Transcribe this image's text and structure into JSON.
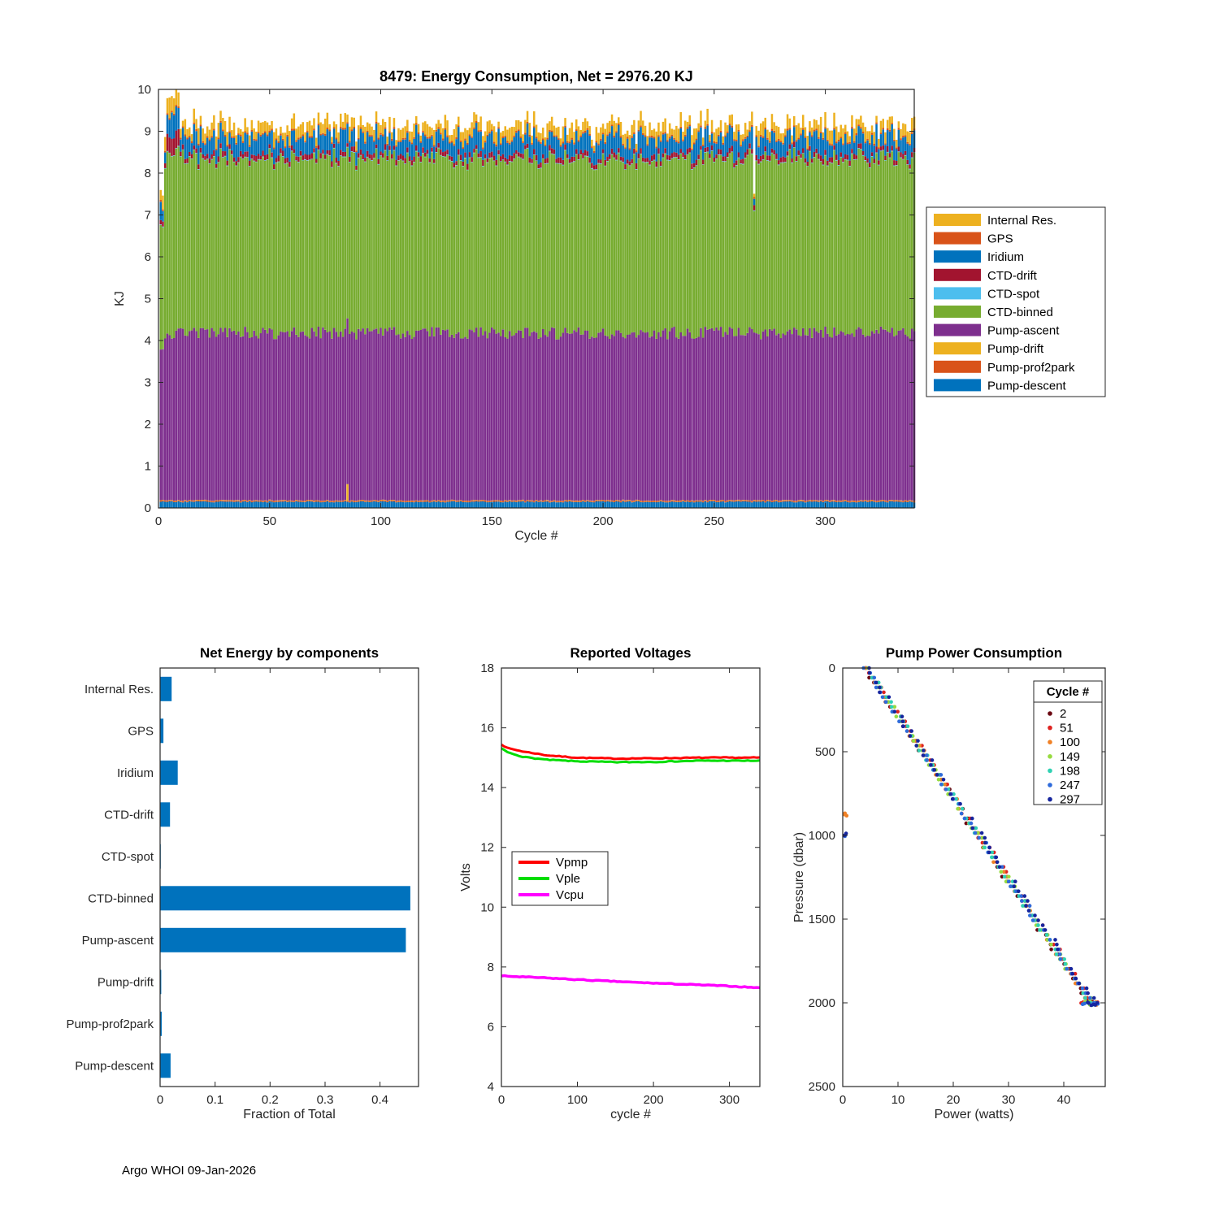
{
  "figure": {
    "footer": "Argo WHOI 09-Jan-2026"
  },
  "chart_data": [
    {
      "id": "energy",
      "type": "bar",
      "stacked": true,
      "title": "8479: Energy Consumption,  Net = 2976.20 KJ",
      "xlabel": "Cycle #",
      "ylabel": "KJ",
      "net_kj": 2976.2,
      "xlim": [
        0,
        340
      ],
      "ylim": [
        0,
        10
      ],
      "xticks": [
        0,
        50,
        100,
        150,
        200,
        250,
        300
      ],
      "yticks": [
        0,
        1,
        2,
        3,
        4,
        5,
        6,
        7,
        8,
        9,
        10
      ],
      "n_cycles": 340,
      "legend": [
        "Internal Res.",
        "GPS",
        "Iridium",
        "CTD-drift",
        "CTD-spot",
        "CTD-binned",
        "Pump-ascent",
        "Pump-drift",
        "Pump-prof2park",
        "Pump-descent"
      ],
      "series": [
        {
          "name": "Pump-descent",
          "color": "#0072BD",
          "base": 0.13,
          "noise": 0.03
        },
        {
          "name": "Pump-prof2park",
          "color": "#D95319",
          "base": 0.025,
          "noise": 0.005
        },
        {
          "name": "Pump-drift",
          "color": "#EDB120",
          "base": 0.006,
          "noise": 0.004
        },
        {
          "name": "Pump-ascent",
          "color": "#7E2F8E",
          "base": 3.85,
          "noise": 0.3
        },
        {
          "name": "CTD-binned",
          "color": "#77AC30",
          "base": 4.0,
          "noise": 0.3
        },
        {
          "name": "CTD-spot",
          "color": "#4DBEEE",
          "base": 0.012,
          "noise": 0.004
        },
        {
          "name": "CTD-drift",
          "color": "#A2142F",
          "base": 0.09,
          "noise": 0.05
        },
        {
          "name": "Iridium",
          "color": "#0072BD",
          "base": 0.25,
          "noise": 0.3
        },
        {
          "name": "GPS",
          "color": "#D95319",
          "base": 0.035,
          "noise": 0.01
        },
        {
          "name": "Internal Res.",
          "color": "#EDB120",
          "base": 0.12,
          "noise": 0.25
        }
      ],
      "anomalies": {
        "startup_low_cycles": [
          1,
          2
        ],
        "startup_spike_cycles": [
          4,
          9
        ],
        "dip_cycle": 268,
        "pump_drift_spike_range": [
          60,
          110
        ]
      }
    },
    {
      "id": "fractions",
      "type": "bar",
      "orientation": "horizontal",
      "title": "Net Energy by components",
      "xlabel": "Fraction of Total",
      "categories": [
        "Internal Res.",
        "GPS",
        "Iridium",
        "CTD-drift",
        "CTD-spot",
        "CTD-binned",
        "Pump-ascent",
        "Pump-drift",
        "Pump-prof2park",
        "Pump-descent"
      ],
      "values": [
        0.021,
        0.006,
        0.032,
        0.018,
        0.001,
        0.455,
        0.447,
        0.002,
        0.003,
        0.019
      ],
      "bar_color": "#0072BD",
      "xlim": [
        0,
        0.47
      ],
      "xticks": [
        0,
        0.1,
        0.2,
        0.3,
        0.4
      ]
    },
    {
      "id": "voltages",
      "type": "line",
      "title": "Reported Voltages",
      "xlabel": "cycle #",
      "ylabel": "Volts",
      "xlim": [
        0,
        340
      ],
      "ylim": [
        4,
        18
      ],
      "xticks": [
        0,
        100,
        200,
        300
      ],
      "yticks": [
        4,
        6,
        8,
        10,
        12,
        14,
        16,
        18
      ],
      "legend_position": "left-middle",
      "series": [
        {
          "name": "Vpmp",
          "color": "#FF0000",
          "width": 3,
          "points": [
            [
              0,
              15.45
            ],
            [
              8,
              15.32
            ],
            [
              30,
              15.2
            ],
            [
              60,
              15.08
            ],
            [
              100,
              15.0
            ],
            [
              150,
              14.97
            ],
            [
              200,
              14.98
            ],
            [
              260,
              15.0
            ],
            [
              340,
              15.0
            ]
          ]
        },
        {
          "name": "Vple",
          "color": "#00DD00",
          "width": 3,
          "points": [
            [
              0,
              15.32
            ],
            [
              8,
              15.18
            ],
            [
              30,
              15.02
            ],
            [
              60,
              14.93
            ],
            [
              100,
              14.88
            ],
            [
              150,
              14.85
            ],
            [
              200,
              14.86
            ],
            [
              260,
              14.9
            ],
            [
              340,
              14.9
            ]
          ]
        },
        {
          "name": "Vcpu",
          "color": "#FF00FF",
          "width": 3.5,
          "points": [
            [
              0,
              7.7
            ],
            [
              60,
              7.63
            ],
            [
              120,
              7.55
            ],
            [
              180,
              7.48
            ],
            [
              240,
              7.42
            ],
            [
              300,
              7.36
            ],
            [
              340,
              7.3
            ]
          ]
        }
      ]
    },
    {
      "id": "pump",
      "type": "scatter",
      "title": "Pump Power Consumption",
      "xlabel": "Power (watts)",
      "ylabel": "Pressure (dbar)",
      "xlim": [
        0,
        47.5
      ],
      "ylim": [
        0,
        2500
      ],
      "y_reversed": true,
      "xticks": [
        0,
        10,
        20,
        30,
        40
      ],
      "yticks": [
        0,
        500,
        1000,
        1500,
        2000,
        2500
      ],
      "legend_title": "Cycle #",
      "series": [
        {
          "name": "2",
          "color": "#6B0711"
        },
        {
          "name": "51",
          "color": "#DF2320"
        },
        {
          "name": "100",
          "color": "#F08126",
          "outliers": [
            [
              0.4,
              868
            ],
            [
              0.7,
              882
            ],
            [
              0.3,
              875
            ]
          ]
        },
        {
          "name": "149",
          "color": "#97DB40"
        },
        {
          "name": "198",
          "color": "#2FD1B2"
        },
        {
          "name": "247",
          "color": "#2E6BDB",
          "outliers": [
            [
              0.4,
              1005
            ]
          ]
        },
        {
          "name": "297",
          "color": "#16259E",
          "outliers": [
            [
              0.3,
              1000
            ],
            [
              0.6,
              988
            ]
          ]
        }
      ],
      "trend": {
        "pressure_max": 2000,
        "power_start": 4.2,
        "power_end": 45.0,
        "jitter": 0.6,
        "n_points": 70,
        "end_cluster_power": [
          43,
          46.3
        ],
        "end_cluster_pressure": [
          1990,
          2015
        ]
      }
    }
  ]
}
